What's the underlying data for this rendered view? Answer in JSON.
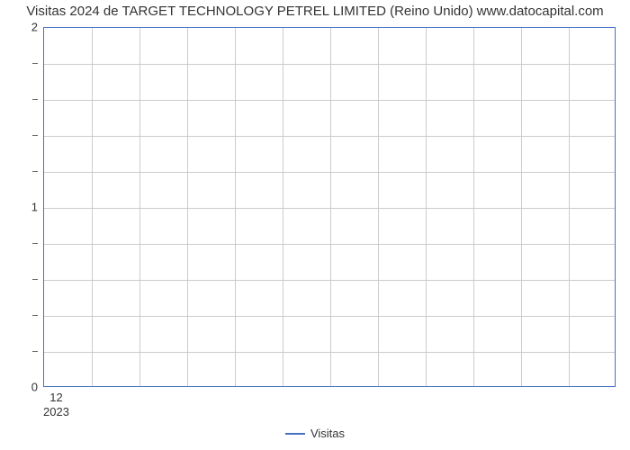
{
  "chart": {
    "type": "line",
    "title": "Visitas 2024 de TARGET TECHNOLOGY PETREL LIMITED (Reino Unido) www.datocapital.com",
    "title_fontsize": 15,
    "title_color": "#333333",
    "background_color": "#ffffff",
    "plot_border_color": "#4472c4",
    "grid_color": "#cccccc",
    "text_color": "#333333",
    "ylim": [
      0,
      2
    ],
    "y_major_ticks": [
      0,
      1,
      2
    ],
    "y_minor_step": 0.2,
    "x_tick_label": "12",
    "x_sub_label": "2023",
    "x_major_count": 12,
    "label_fontsize": 13,
    "legend": {
      "label": "Visitas",
      "line_color": "#4472c4",
      "position_bottom": true
    },
    "series": {
      "name": "Visitas",
      "color": "#4472c4",
      "values": []
    }
  }
}
